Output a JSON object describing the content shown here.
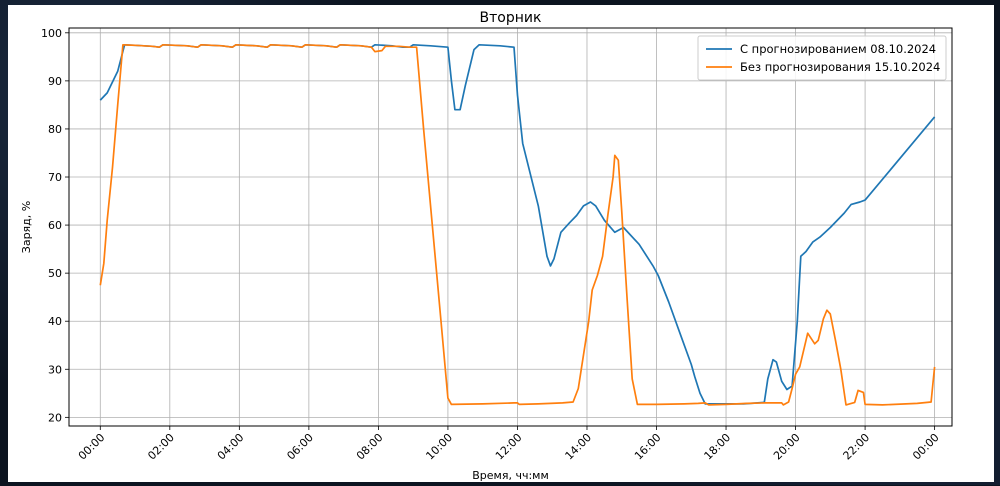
{
  "chart_data": {
    "type": "line",
    "title": "Вторник",
    "xlabel": "Время, чч:мм",
    "ylabel": "Заряд, %",
    "xlim": [
      -0.9,
      24.5
    ],
    "ylim": [
      18.2,
      101
    ],
    "xticks": [
      0,
      2,
      4,
      6,
      8,
      10,
      12,
      14,
      16,
      18,
      20,
      22,
      24
    ],
    "xtick_labels": [
      "00:00",
      "02:00",
      "04:00",
      "06:00",
      "08:00",
      "10:00",
      "12:00",
      "14:00",
      "16:00",
      "18:00",
      "20:00",
      "22:00",
      "00:00"
    ],
    "yticks": [
      20,
      30,
      40,
      50,
      60,
      70,
      80,
      90,
      100
    ],
    "grid": true,
    "legend_position": "top-right",
    "series": [
      {
        "name": "С прогнозированием 08.10.2024",
        "color": "#1f77b4",
        "points": [
          [
            0.0,
            86
          ],
          [
            0.2,
            87.5
          ],
          [
            0.5,
            92
          ],
          [
            0.7,
            97.5
          ],
          [
            1.0,
            97.4
          ],
          [
            1.5,
            97.2
          ],
          [
            1.7,
            97.0
          ],
          [
            1.8,
            97.5
          ],
          [
            2.5,
            97.3
          ],
          [
            2.8,
            97.0
          ],
          [
            2.9,
            97.5
          ],
          [
            3.5,
            97.3
          ],
          [
            3.8,
            97.0
          ],
          [
            3.9,
            97.5
          ],
          [
            4.5,
            97.3
          ],
          [
            4.8,
            97.0
          ],
          [
            4.9,
            97.5
          ],
          [
            5.5,
            97.3
          ],
          [
            5.8,
            97.0
          ],
          [
            5.9,
            97.5
          ],
          [
            6.5,
            97.3
          ],
          [
            6.8,
            97.0
          ],
          [
            6.9,
            97.5
          ],
          [
            7.5,
            97.3
          ],
          [
            7.8,
            97.0
          ],
          [
            7.9,
            97.5
          ],
          [
            8.4,
            97.3
          ],
          [
            8.7,
            97.0
          ],
          [
            8.9,
            97.0
          ],
          [
            9.0,
            97.5
          ],
          [
            9.5,
            97.3
          ],
          [
            10.0,
            97.0
          ],
          [
            10.1,
            90
          ],
          [
            10.2,
            84
          ],
          [
            10.35,
            84
          ],
          [
            10.5,
            89
          ],
          [
            10.75,
            96.5
          ],
          [
            10.9,
            97.5
          ],
          [
            11.5,
            97.3
          ],
          [
            11.9,
            97.0
          ],
          [
            12.0,
            87
          ],
          [
            12.15,
            77
          ],
          [
            12.6,
            64
          ],
          [
            12.85,
            53.5
          ],
          [
            12.95,
            51.5
          ],
          [
            13.05,
            53
          ],
          [
            13.25,
            58.5
          ],
          [
            13.5,
            60.5
          ],
          [
            13.7,
            62
          ],
          [
            13.9,
            64
          ],
          [
            14.1,
            64.8
          ],
          [
            14.25,
            64
          ],
          [
            14.5,
            61
          ],
          [
            14.8,
            58.5
          ],
          [
            15.05,
            59.5
          ],
          [
            15.5,
            56
          ],
          [
            15.9,
            51.5
          ],
          [
            16.05,
            49.5
          ],
          [
            16.35,
            44
          ],
          [
            16.7,
            37
          ],
          [
            17.0,
            31
          ],
          [
            17.1,
            28.5
          ],
          [
            17.25,
            25
          ],
          [
            17.4,
            22.8
          ],
          [
            18.0,
            22.8
          ],
          [
            18.5,
            22.8
          ],
          [
            19.1,
            23.1
          ],
          [
            19.2,
            28
          ],
          [
            19.35,
            32
          ],
          [
            19.45,
            31.5
          ],
          [
            19.6,
            27.5
          ],
          [
            19.75,
            25.8
          ],
          [
            19.9,
            26.5
          ],
          [
            20.05,
            40
          ],
          [
            20.15,
            53.5
          ],
          [
            20.3,
            54.5
          ],
          [
            20.5,
            56.5
          ],
          [
            20.7,
            57.5
          ],
          [
            21.0,
            59.5
          ],
          [
            21.4,
            62.5
          ],
          [
            21.6,
            64.3
          ],
          [
            21.85,
            64.8
          ],
          [
            22.0,
            65.2
          ],
          [
            24.0,
            82.5
          ]
        ]
      },
      {
        "name": "Без прогнозирования 15.10.2024",
        "color": "#ff7f0e",
        "points": [
          [
            0.0,
            47.5
          ],
          [
            0.1,
            52
          ],
          [
            0.2,
            61
          ],
          [
            0.35,
            72
          ],
          [
            0.5,
            85
          ],
          [
            0.65,
            97.5
          ],
          [
            1.0,
            97.4
          ],
          [
            1.5,
            97.2
          ],
          [
            1.7,
            97.0
          ],
          [
            1.8,
            97.5
          ],
          [
            2.5,
            97.3
          ],
          [
            2.8,
            97.0
          ],
          [
            2.9,
            97.5
          ],
          [
            3.5,
            97.3
          ],
          [
            3.8,
            97.0
          ],
          [
            3.9,
            97.5
          ],
          [
            4.5,
            97.3
          ],
          [
            4.8,
            97.0
          ],
          [
            4.9,
            97.5
          ],
          [
            5.5,
            97.3
          ],
          [
            5.8,
            97.0
          ],
          [
            5.9,
            97.5
          ],
          [
            6.5,
            97.3
          ],
          [
            6.8,
            97.0
          ],
          [
            6.9,
            97.5
          ],
          [
            7.5,
            97.3
          ],
          [
            7.8,
            97.0
          ],
          [
            7.9,
            96.1
          ],
          [
            8.1,
            96.3
          ],
          [
            8.2,
            97.2
          ],
          [
            8.6,
            97.2
          ],
          [
            8.9,
            97.0
          ],
          [
            9.1,
            97.0
          ],
          [
            9.3,
            80
          ],
          [
            9.55,
            60
          ],
          [
            9.8,
            40
          ],
          [
            10.0,
            24
          ],
          [
            10.1,
            22.7
          ],
          [
            11.0,
            22.8
          ],
          [
            11.9,
            23.0
          ],
          [
            12.0,
            23.0
          ],
          [
            12.05,
            22.7
          ],
          [
            12.6,
            22.8
          ],
          [
            13.3,
            23.0
          ],
          [
            13.6,
            23.2
          ],
          [
            13.75,
            26
          ],
          [
            13.9,
            33
          ],
          [
            14.05,
            40
          ],
          [
            14.15,
            46.5
          ],
          [
            14.3,
            49.5
          ],
          [
            14.45,
            53.5
          ],
          [
            14.6,
            62
          ],
          [
            14.75,
            70
          ],
          [
            14.8,
            74.5
          ],
          [
            14.9,
            73.5
          ],
          [
            15.0,
            63
          ],
          [
            15.15,
            45
          ],
          [
            15.3,
            28
          ],
          [
            15.45,
            22.7
          ],
          [
            16.0,
            22.7
          ],
          [
            16.8,
            22.8
          ],
          [
            17.2,
            22.9
          ],
          [
            17.4,
            23.0
          ],
          [
            17.5,
            22.6
          ],
          [
            18.0,
            22.7
          ],
          [
            18.6,
            22.9
          ],
          [
            19.1,
            23.0
          ],
          [
            19.6,
            23.0
          ],
          [
            19.65,
            22.6
          ],
          [
            19.8,
            23.2
          ],
          [
            19.9,
            26
          ],
          [
            20.0,
            29
          ],
          [
            20.12,
            30.5
          ],
          [
            20.25,
            34.5
          ],
          [
            20.35,
            37.5
          ],
          [
            20.55,
            35.3
          ],
          [
            20.65,
            36
          ],
          [
            20.8,
            40.5
          ],
          [
            20.9,
            42.3
          ],
          [
            21.0,
            41.5
          ],
          [
            21.15,
            36
          ],
          [
            21.3,
            30
          ],
          [
            21.45,
            22.6
          ],
          [
            21.7,
            23.1
          ],
          [
            21.8,
            25.6
          ],
          [
            21.95,
            25.2
          ],
          [
            22.0,
            22.7
          ],
          [
            22.5,
            22.6
          ],
          [
            23.5,
            22.9
          ],
          [
            23.9,
            23.2
          ],
          [
            23.95,
            27
          ],
          [
            24.0,
            30.5
          ]
        ]
      }
    ]
  }
}
